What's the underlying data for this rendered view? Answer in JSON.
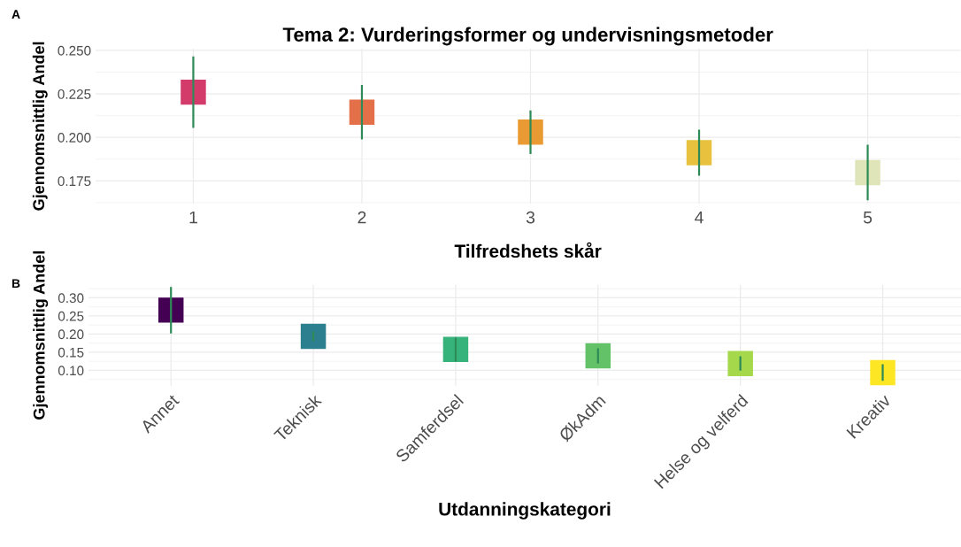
{
  "chart_data": [
    {
      "type": "scatter",
      "title": "Tema 2: Vurderingsformer og undervisningsmetoder",
      "xlabel": "Tilfredshets skår",
      "ylabel": "Gjennomsnittlig Andel",
      "annotations": [
        "A"
      ],
      "categories": [
        "1",
        "2",
        "3",
        "4",
        "5"
      ],
      "values": [
        0.226,
        0.2145,
        0.203,
        0.1912,
        0.1798
      ],
      "errors": [
        0.0205,
        0.0156,
        0.0125,
        0.0132,
        0.016
      ],
      "colors": [
        "#d33b6b",
        "#e4704a",
        "#ea9a33",
        "#e8c23f",
        "#dfe4b9"
      ],
      "marker": "square",
      "grid": true,
      "ylim": [
        0.162,
        0.251
      ],
      "yticks": [
        {
          "value": 0.175,
          "label": "0.175"
        },
        {
          "value": 0.2,
          "label": "0.200"
        },
        {
          "value": 0.225,
          "label": "0.225"
        },
        {
          "value": 0.25,
          "label": "0.250"
        }
      ]
    },
    {
      "type": "scatter",
      "xlabel": "Utdanningskategori",
      "ylabel": "Gjennomsnittlig Andel",
      "annotations": [
        "B"
      ],
      "categories": [
        "Annet",
        "Teknisk",
        "Samferdsel",
        "ØkAdm",
        "Helse og velferd",
        "Kreativ"
      ],
      "values": [
        0.266,
        0.194,
        0.158,
        0.14,
        0.119,
        0.094
      ],
      "errors": [
        0.064,
        0.013,
        0.033,
        0.021,
        0.02,
        0.023
      ],
      "colors": [
        "#440154",
        "#2c7f8e",
        "#36b37b",
        "#63c267",
        "#a5d84a",
        "#fde725"
      ],
      "marker": "square",
      "grid": true,
      "ylim": [
        0.058,
        0.336
      ],
      "yticks": [
        {
          "value": 0.1,
          "label": "0.10"
        },
        {
          "value": 0.15,
          "label": "0.15"
        },
        {
          "value": 0.2,
          "label": "0.20"
        },
        {
          "value": 0.25,
          "label": "0.25"
        },
        {
          "value": 0.3,
          "label": "0.30"
        }
      ]
    }
  ]
}
